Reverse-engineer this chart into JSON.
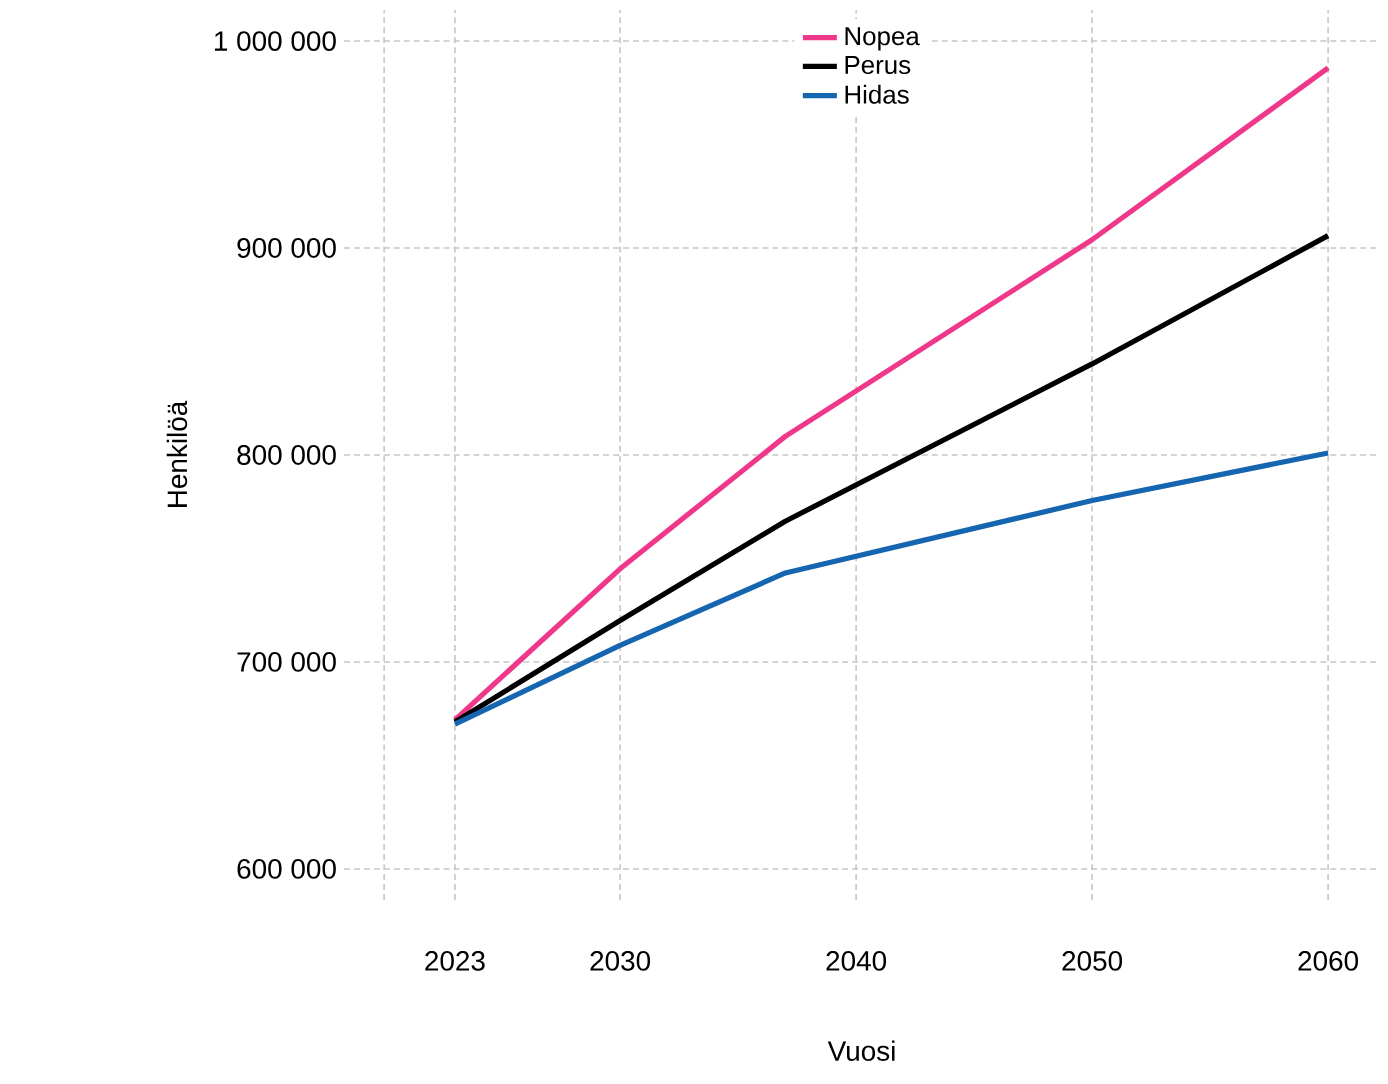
{
  "chart_data": {
    "type": "line",
    "xlabel": "Vuosi",
    "ylabel": "Henkilöä",
    "xlim": [
      2018.3,
      2062.2
    ],
    "ylim": [
      585000,
      1015000
    ],
    "xticks": [
      {
        "value": 2020,
        "label": null
      },
      2023,
      2030,
      2040,
      2050,
      2060
    ],
    "yticks": [
      {
        "value": 600000,
        "label": "600 000"
      },
      {
        "value": 700000,
        "label": "700 000"
      },
      {
        "value": 800000,
        "label": "800 000"
      },
      {
        "value": 900000,
        "label": "900 000"
      },
      {
        "value": 1000000,
        "label": "1 000 000"
      }
    ],
    "grid": true,
    "legend": "top",
    "line_style": "solid",
    "marker": "none",
    "series": [
      {
        "name": "Nopea",
        "color": "#f0388a",
        "x": [
          2023,
          2030,
          2037,
          2050,
          2060
        ],
        "values": [
          672000,
          745000,
          809000,
          904000,
          987000
        ]
      },
      {
        "name": "Perus",
        "color": "#000000",
        "x": [
          2023,
          2030,
          2037,
          2050,
          2060
        ],
        "values": [
          671000,
          720000,
          768000,
          844000,
          906000
        ]
      },
      {
        "name": "Hidas",
        "color": "#1565b0",
        "x": [
          2023,
          2030,
          2037,
          2050,
          2060
        ],
        "values": [
          670000,
          708000,
          743000,
          778000,
          801000
        ]
      }
    ]
  }
}
